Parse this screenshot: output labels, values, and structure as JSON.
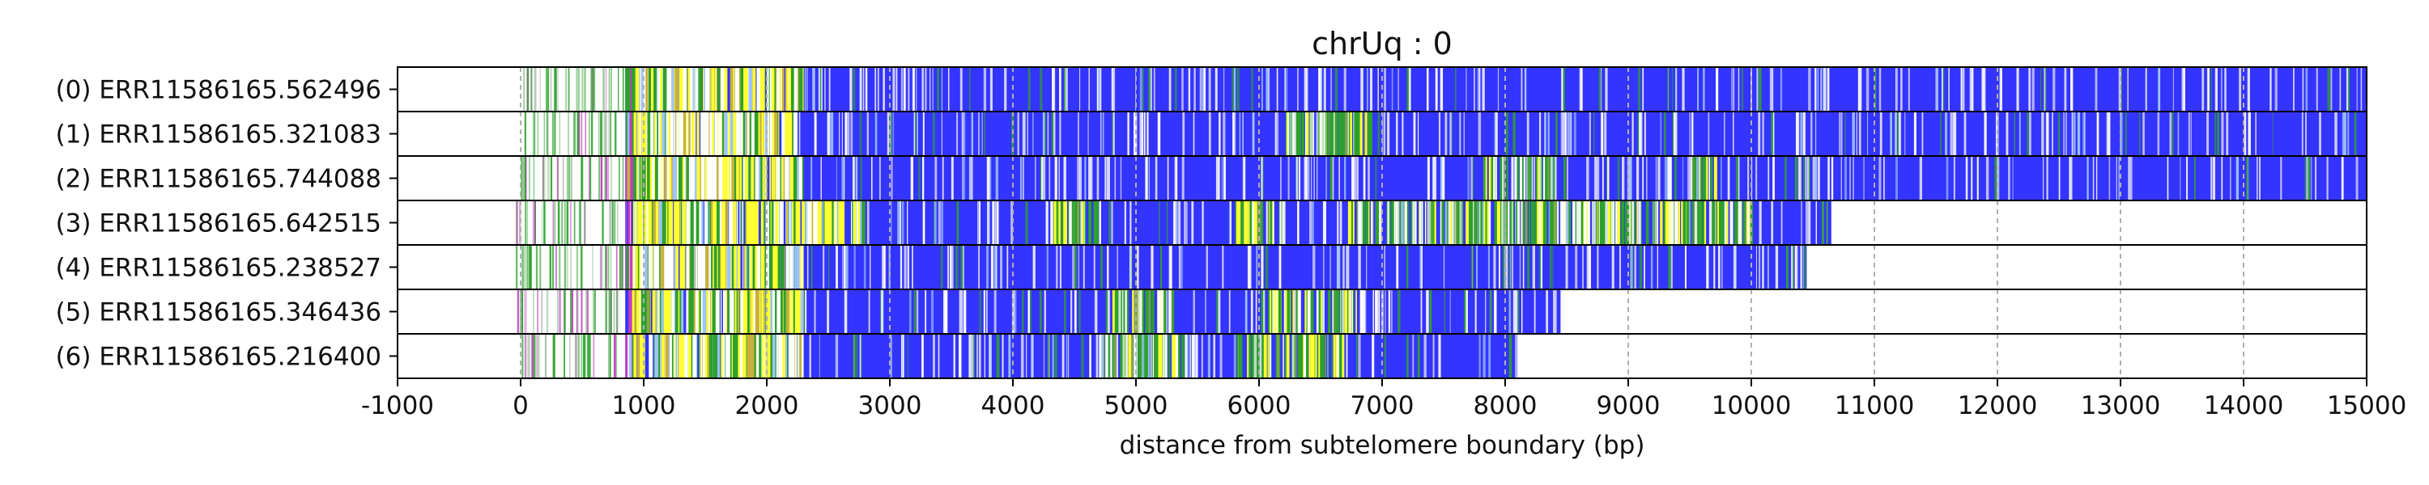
{
  "chart_data": {
    "type": "heatmap",
    "title": "chrUq : 0",
    "xlabel": "distance from subtelomere boundary (bp)",
    "xlim": [
      -1000,
      15000
    ],
    "xticks": [
      "-1000",
      "0",
      "1000",
      "2000",
      "3000",
      "4000",
      "5000",
      "6000",
      "7000",
      "8000",
      "9000",
      "10000",
      "11000",
      "12000",
      "13000",
      "14000",
      "15000"
    ],
    "grid": "x-dashed",
    "colors": {
      "repeat": "#3434ff",
      "gap": "#ffffff",
      "green": "#2ea02e",
      "yellow": "#ffff33",
      "magenta": "#c040c0",
      "lightblue": "#9ec3ff"
    },
    "reads": [
      {
        "label": "(0) ERR11586165.562496",
        "start": 0,
        "end": 15000,
        "hv_end": 2300,
        "green_zones": []
      },
      {
        "label": "(1) ERR11586165.321083",
        "start": 0,
        "end": 15000,
        "hv_end": 2250,
        "green_zones": [
          [
            6200,
            6900
          ]
        ]
      },
      {
        "label": "(2) ERR11586165.744088",
        "start": 0,
        "end": 15000,
        "hv_end": 2300,
        "green_zones": [
          [
            7800,
            8400
          ],
          [
            9500,
            9700
          ]
        ]
      },
      {
        "label": "(3) ERR11586165.642515",
        "start": -50,
        "end": 10650,
        "hv_end": 2800,
        "green_zones": [
          [
            4300,
            4700
          ],
          [
            5800,
            6200
          ],
          [
            6700,
            10000
          ]
        ]
      },
      {
        "label": "(4) ERR11586165.238527",
        "start": -50,
        "end": 10450,
        "hv_end": 2300,
        "green_zones": []
      },
      {
        "label": "(5) ERR11586165.346436",
        "start": -50,
        "end": 8450,
        "hv_end": 2300,
        "green_zones": [
          [
            4800,
            5300
          ],
          [
            6000,
            6800
          ]
        ]
      },
      {
        "label": "(6) ERR11586165.216400",
        "start": -50,
        "end": 8100,
        "hv_end": 2300,
        "green_zones": [
          [
            4700,
            5400
          ],
          [
            5800,
            6700
          ]
        ]
      }
    ]
  }
}
